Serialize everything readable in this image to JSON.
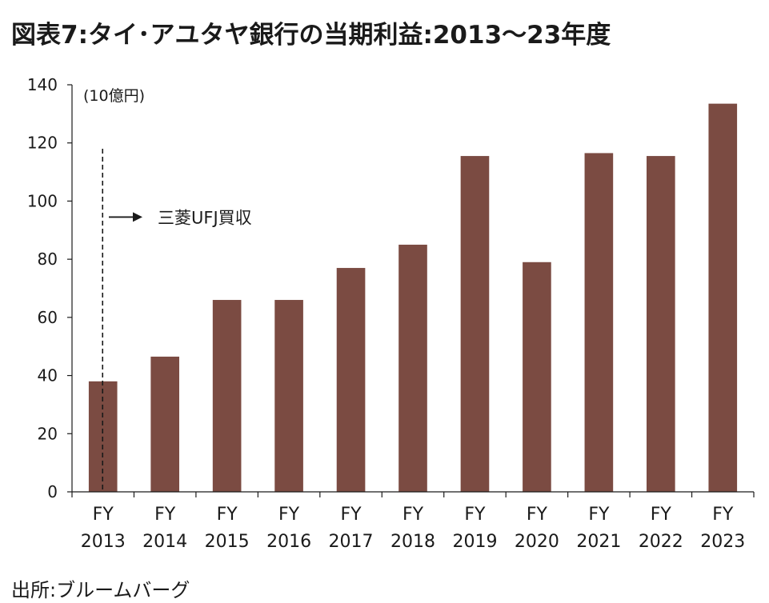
{
  "title": "図表7:タイ･アユタヤ銀行の当期利益:2013～23年度",
  "source": "出所:ブルームバーグ",
  "chart_data": {
    "type": "bar",
    "unit_label": "(10億円)",
    "categories": [
      [
        "FY",
        "2013"
      ],
      [
        "FY",
        "2014"
      ],
      [
        "FY",
        "2015"
      ],
      [
        "FY",
        "2016"
      ],
      [
        "FY",
        "2017"
      ],
      [
        "FY",
        "2018"
      ],
      [
        "FY",
        "2019"
      ],
      [
        "FY",
        "2020"
      ],
      [
        "FY",
        "2021"
      ],
      [
        "FY",
        "2022"
      ],
      [
        "FY",
        "2023"
      ]
    ],
    "values": [
      38,
      46.5,
      66,
      66,
      77,
      85,
      115.5,
      79,
      116.5,
      115.5,
      133.5
    ],
    "ylim": [
      0,
      140
    ],
    "yticks": [
      0,
      20,
      40,
      60,
      80,
      100,
      120,
      140
    ],
    "bar_color": "#7b4b42",
    "grid": false,
    "annotation": {
      "text": "三菱UFJ買収",
      "category_index": 0,
      "arrow": "right"
    }
  }
}
